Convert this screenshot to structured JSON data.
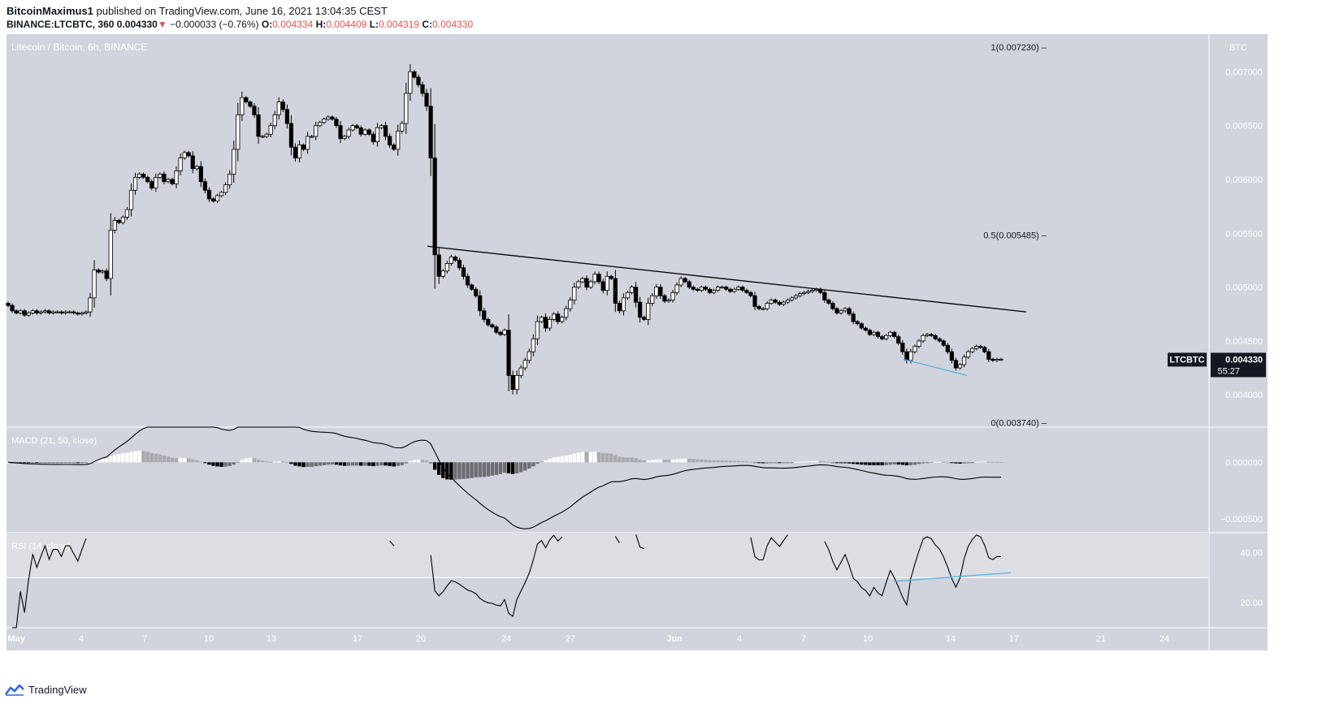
{
  "header": {
    "author": "BitcoinMaximus1",
    "published_text": "published on TradingView.com, June 16, 2021 13:04:35 CEST",
    "symbol_line": "BINANCE:LTCBTC, 360",
    "last": "0.004330",
    "change": "−0.000033 (−0.76%)",
    "open_label": "O:",
    "open": "0.004334",
    "high_label": "H:",
    "high": "0.004409",
    "low_label": "L:",
    "low": "0.004319",
    "close_label": "C:",
    "close": "0.004330"
  },
  "footer": {
    "brand": "TradingView"
  },
  "colors": {
    "pane_bg": "#d1d4dc",
    "rsi_band": "#dcdee3",
    "up_candle": "#ffffff",
    "down_candle": "#000000",
    "divergence": "#4fb3e8",
    "red": "#ef5350",
    "label_bg": "#131722"
  },
  "chart_data": [
    {
      "type": "candlestick",
      "title": "Litecoin / Bitcoin, 6h, BINANCE",
      "axis_unit": "BTC",
      "y_ticks": [
        "0.007000",
        "0.006500",
        "0.006000",
        "0.005500",
        "0.005000",
        "0.004500",
        "0.004000"
      ],
      "ylim": [
        0.0037,
        0.00735
      ],
      "x_ticks": [
        "May",
        "4",
        "7",
        "10",
        "13",
        "17",
        "20",
        "24",
        "27",
        "Jun",
        "4",
        "7",
        "10",
        "14",
        "17",
        "21",
        "24"
      ],
      "fib_levels": [
        {
          "label": "1(0.007230)",
          "value": 0.00723
        },
        {
          "label": "0.5(0.005485)",
          "value": 0.005485
        },
        {
          "label": "0(0.003740)",
          "value": 0.00374
        }
      ],
      "price_label": {
        "symbol": "LTCBTC",
        "price": "0.004330",
        "countdown": "55:27"
      },
      "trendline": [
        [
          0.0,
          0.00538
        ],
        [
          1.0,
          0.00477
        ]
      ],
      "divergence_line": [
        [
          0.0,
          0.00433
        ],
        [
          1.0,
          0.00418
        ]
      ],
      "close_series": [
        0.00483,
        0.00478,
        0.00476,
        0.00478,
        0.00474,
        0.00476,
        0.00478,
        0.00476,
        0.00477,
        0.00478,
        0.00476,
        0.00477,
        0.00477,
        0.00476,
        0.00477,
        0.00477,
        0.00476,
        0.00475,
        0.00476,
        0.00477,
        0.0049,
        0.00516,
        0.00514,
        0.00515,
        0.00508,
        0.00553,
        0.00562,
        0.0056,
        0.00565,
        0.00572,
        0.0059,
        0.00602,
        0.00605,
        0.00602,
        0.00598,
        0.00592,
        0.00602,
        0.00605,
        0.00598,
        0.006,
        0.00596,
        0.00608,
        0.0062,
        0.00625,
        0.00622,
        0.0061,
        0.00612,
        0.00598,
        0.0059,
        0.00582,
        0.0058,
        0.00585,
        0.00588,
        0.00595,
        0.00605,
        0.00628,
        0.0066,
        0.00676,
        0.00672,
        0.00668,
        0.0066,
        0.0064,
        0.0064,
        0.00642,
        0.0065,
        0.0066,
        0.00672,
        0.00665,
        0.00652,
        0.0063,
        0.0062,
        0.00632,
        0.00628,
        0.0064,
        0.0064,
        0.0065,
        0.00653,
        0.00656,
        0.00658,
        0.00656,
        0.0065,
        0.00638,
        0.0064,
        0.00646,
        0.0065,
        0.00648,
        0.00642,
        0.00646,
        0.00642,
        0.00635,
        0.00648,
        0.0065,
        0.0064,
        0.00632,
        0.00628,
        0.00645,
        0.00652,
        0.0068,
        0.007,
        0.00695,
        0.00688,
        0.0068,
        0.00668,
        0.0062,
        0.0053,
        0.0051,
        0.00515,
        0.00522,
        0.00528,
        0.00525,
        0.00518,
        0.0051,
        0.00502,
        0.00498,
        0.00492,
        0.00478,
        0.0047,
        0.00465,
        0.00463,
        0.00458,
        0.00456,
        0.0046,
        0.00418,
        0.00405,
        0.00418,
        0.00425,
        0.00432,
        0.0044,
        0.00452,
        0.00468,
        0.00472,
        0.00462,
        0.0047,
        0.00475,
        0.00468,
        0.00472,
        0.0048,
        0.00488,
        0.005,
        0.00505,
        0.00508,
        0.005,
        0.00505,
        0.00512,
        0.00505,
        0.00497,
        0.0051,
        0.00508,
        0.00485,
        0.00478,
        0.0049,
        0.00495,
        0.005,
        0.00486,
        0.00472,
        0.0047,
        0.00485,
        0.00492,
        0.005,
        0.00492,
        0.00487,
        0.00488,
        0.00495,
        0.00502,
        0.00508,
        0.00505,
        0.005,
        0.00498,
        0.00497,
        0.005,
        0.00498,
        0.00495,
        0.00497,
        0.005,
        0.005,
        0.00498,
        0.00496,
        0.00498,
        0.005,
        0.00497,
        0.00495,
        0.00492,
        0.00482,
        0.0048,
        0.0048,
        0.00485,
        0.00488,
        0.00486,
        0.00484,
        0.00486,
        0.00488,
        0.0049,
        0.00492,
        0.00494,
        0.00495,
        0.00496,
        0.00497,
        0.00498,
        0.00495,
        0.00488,
        0.00485,
        0.0048,
        0.00476,
        0.00478,
        0.0048,
        0.00475,
        0.00468,
        0.00466,
        0.00462,
        0.0046,
        0.00456,
        0.00458,
        0.00454,
        0.00452,
        0.00455,
        0.00458,
        0.00454,
        0.00448,
        0.0044,
        0.00432,
        0.0044,
        0.00445,
        0.0045,
        0.00455,
        0.00456,
        0.00455,
        0.00452,
        0.0045,
        0.00446,
        0.0044,
        0.00432,
        0.00425,
        0.00428,
        0.00435,
        0.0044,
        0.00443,
        0.00445,
        0.00444,
        0.0044,
        0.00433,
        0.00432,
        0.00433,
        0.00433
      ]
    },
    {
      "type": "line",
      "title": "MACD (21, 50, close)",
      "y_ticks": [
        "0.000000",
        "−0.000500"
      ],
      "ylim": [
        -0.00062,
        0.00031
      ]
    },
    {
      "type": "line",
      "title": "RSI (14, close)",
      "y_ticks": [
        "40.00",
        "20.00"
      ],
      "ylim": [
        10,
        48
      ],
      "band": [
        30,
        70
      ],
      "divergence_line": [
        [
          0.0,
          28.5
        ],
        [
          1.0,
          32
        ]
      ]
    }
  ]
}
